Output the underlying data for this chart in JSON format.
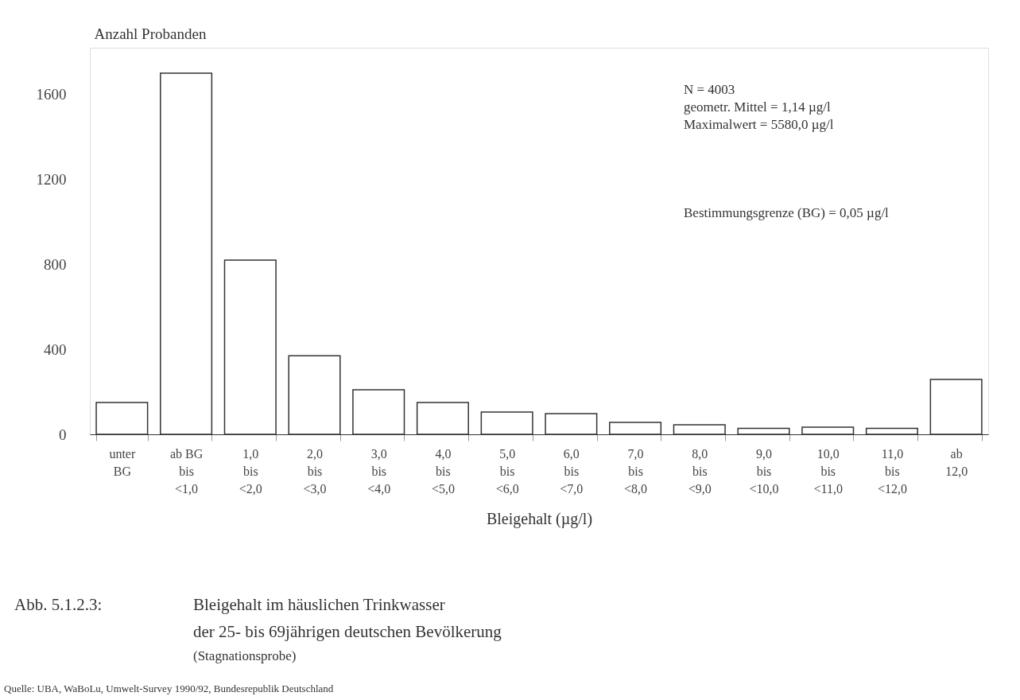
{
  "chart_data": {
    "type": "bar",
    "title": "Bleigehalt im häuslichen Trinkwasser\nder 25- bis 69jährigen deutschen Bevölkerung",
    "subtitle": "(Stagnationsprobe)",
    "xlabel": "Bleigehalt (µg/l)",
    "ylabel": "Anzahl Probanden",
    "categories": [
      "unter\nBG",
      "ab BG\nbis\n<1,0",
      "1,0\nbis\n<2,0",
      "2,0\nbis\n<3,0",
      "3,0\nbis\n<4,0",
      "4,0\nbis\n<5,0",
      "5,0\nbis\n<6,0",
      "6,0\nbis\n<7,0",
      "7,0\nbis\n<8,0",
      "8,0\nbis\n<9,0",
      "9,0\nbis\n<10,0",
      "10,0\nbis\n<11,0",
      "11,0\nbis\n<12,0",
      "ab\n12,0"
    ],
    "values": [
      150,
      1700,
      820,
      370,
      210,
      150,
      105,
      97,
      56,
      45,
      28,
      34,
      28,
      258
    ],
    "color": "#ffffff",
    "ylim": [
      0,
      1820
    ],
    "yticks": [
      0,
      400,
      800,
      1200,
      1600
    ],
    "grid": false,
    "annotations": [
      "N = 4003",
      "geometr. Mittel = 1,14 µg/l",
      "Maximalwert = 5580,0 µg/l",
      "Bestimmungsgrenze (BG) = 0,05 µg/l",
      "Abb. 5.1.2.3:",
      "Quelle:     UBA, WaBoLu, Umwelt-Survey 1990/92, Bundesrepublik Deutschland"
    ]
  }
}
